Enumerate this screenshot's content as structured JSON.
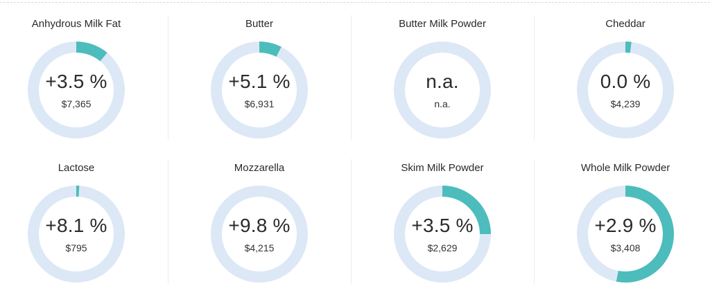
{
  "colors": {
    "track": "#dde8f6",
    "fill": "#4dbcbc"
  },
  "items": [
    {
      "name": "Anhydrous Milk Fat",
      "change": "+3.5 %",
      "price": "$7,365",
      "fill_fraction": 0.11
    },
    {
      "name": "Butter",
      "change": "+5.1 %",
      "price": "$6,931",
      "fill_fraction": 0.075
    },
    {
      "name": "Butter Milk Powder",
      "change": "n.a.",
      "price": "n.a.",
      "fill_fraction": 0
    },
    {
      "name": "Cheddar",
      "change": "0.0 %",
      "price": "$4,239",
      "fill_fraction": 0.02
    },
    {
      "name": "Lactose",
      "change": "+8.1 %",
      "price": "$795",
      "fill_fraction": 0.01
    },
    {
      "name": "Mozzarella",
      "change": "+9.8 %",
      "price": "$4,215",
      "fill_fraction": 0
    },
    {
      "name": "Skim Milk Powder",
      "change": "+3.5 %",
      "price": "$2,629",
      "fill_fraction": 0.25
    },
    {
      "name": "Whole Milk Powder",
      "change": "+2.9 %",
      "price": "$3,408",
      "fill_fraction": 0.53
    }
  ]
}
